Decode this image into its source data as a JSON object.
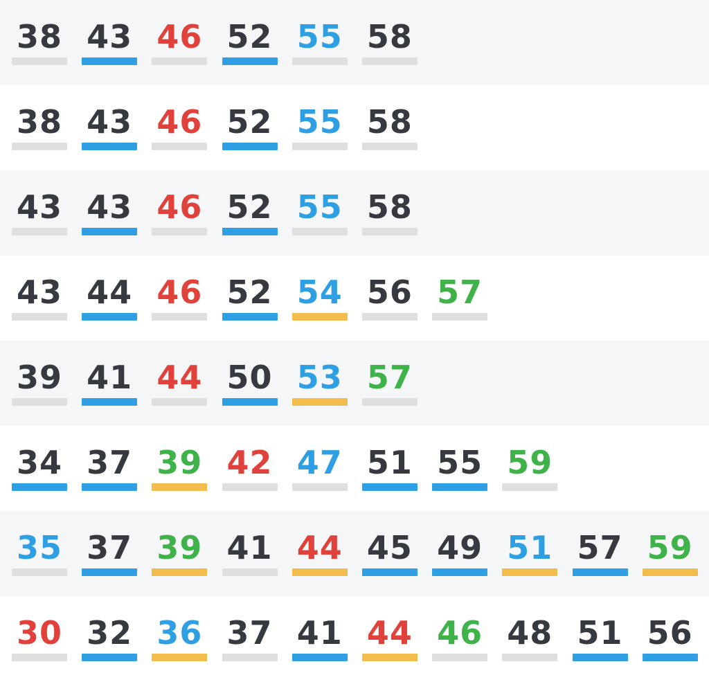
{
  "colors": {
    "text": {
      "dark": "#363940",
      "red": "#e0423b",
      "blue": "#2f9fe3",
      "green": "#3fb24a"
    },
    "bar": {
      "gray": "#dedfe1",
      "blue": "#2f9fe3",
      "yellow": "#f2bd4c"
    },
    "row_backgrounds": [
      "#f5f6f8",
      "#ffffff"
    ]
  },
  "rows": [
    {
      "cells": [
        {
          "value": "38",
          "color": "dark",
          "bar": "gray"
        },
        {
          "value": "43",
          "color": "dark",
          "bar": "blue"
        },
        {
          "value": "46",
          "color": "red",
          "bar": "gray"
        },
        {
          "value": "52",
          "color": "dark",
          "bar": "blue"
        },
        {
          "value": "55",
          "color": "blue",
          "bar": "gray"
        },
        {
          "value": "58",
          "color": "dark",
          "bar": "gray"
        }
      ]
    },
    {
      "cells": [
        {
          "value": "38",
          "color": "dark",
          "bar": "gray"
        },
        {
          "value": "43",
          "color": "dark",
          "bar": "blue"
        },
        {
          "value": "46",
          "color": "red",
          "bar": "gray"
        },
        {
          "value": "52",
          "color": "dark",
          "bar": "blue"
        },
        {
          "value": "55",
          "color": "blue",
          "bar": "gray"
        },
        {
          "value": "58",
          "color": "dark",
          "bar": "gray"
        }
      ]
    },
    {
      "cells": [
        {
          "value": "43",
          "color": "dark",
          "bar": "gray"
        },
        {
          "value": "43",
          "color": "dark",
          "bar": "blue"
        },
        {
          "value": "46",
          "color": "red",
          "bar": "gray"
        },
        {
          "value": "52",
          "color": "dark",
          "bar": "blue"
        },
        {
          "value": "55",
          "color": "blue",
          "bar": "gray"
        },
        {
          "value": "58",
          "color": "dark",
          "bar": "gray"
        }
      ]
    },
    {
      "cells": [
        {
          "value": "43",
          "color": "dark",
          "bar": "gray"
        },
        {
          "value": "44",
          "color": "dark",
          "bar": "blue"
        },
        {
          "value": "46",
          "color": "red",
          "bar": "gray"
        },
        {
          "value": "52",
          "color": "dark",
          "bar": "blue"
        },
        {
          "value": "54",
          "color": "blue",
          "bar": "yellow"
        },
        {
          "value": "56",
          "color": "dark",
          "bar": "gray"
        },
        {
          "value": "57",
          "color": "green",
          "bar": "gray"
        }
      ]
    },
    {
      "cells": [
        {
          "value": "39",
          "color": "dark",
          "bar": "gray"
        },
        {
          "value": "41",
          "color": "dark",
          "bar": "blue"
        },
        {
          "value": "44",
          "color": "red",
          "bar": "gray"
        },
        {
          "value": "50",
          "color": "dark",
          "bar": "blue"
        },
        {
          "value": "53",
          "color": "blue",
          "bar": "yellow"
        },
        {
          "value": "57",
          "color": "green",
          "bar": "gray"
        }
      ]
    },
    {
      "cells": [
        {
          "value": "34",
          "color": "dark",
          "bar": "blue"
        },
        {
          "value": "37",
          "color": "dark",
          "bar": "blue"
        },
        {
          "value": "39",
          "color": "green",
          "bar": "yellow"
        },
        {
          "value": "42",
          "color": "red",
          "bar": "gray"
        },
        {
          "value": "47",
          "color": "blue",
          "bar": "gray"
        },
        {
          "value": "51",
          "color": "dark",
          "bar": "blue"
        },
        {
          "value": "55",
          "color": "dark",
          "bar": "blue"
        },
        {
          "value": "59",
          "color": "green",
          "bar": "gray"
        }
      ]
    },
    {
      "cells": [
        {
          "value": "35",
          "color": "blue",
          "bar": "gray"
        },
        {
          "value": "37",
          "color": "dark",
          "bar": "blue"
        },
        {
          "value": "39",
          "color": "green",
          "bar": "yellow"
        },
        {
          "value": "41",
          "color": "dark",
          "bar": "gray"
        },
        {
          "value": "44",
          "color": "red",
          "bar": "yellow"
        },
        {
          "value": "45",
          "color": "dark",
          "bar": "blue"
        },
        {
          "value": "49",
          "color": "dark",
          "bar": "blue"
        },
        {
          "value": "51",
          "color": "blue",
          "bar": "yellow"
        },
        {
          "value": "57",
          "color": "dark",
          "bar": "blue"
        },
        {
          "value": "59",
          "color": "green",
          "bar": "yellow"
        }
      ]
    },
    {
      "cells": [
        {
          "value": "30",
          "color": "red",
          "bar": "gray"
        },
        {
          "value": "32",
          "color": "dark",
          "bar": "blue"
        },
        {
          "value": "36",
          "color": "blue",
          "bar": "yellow"
        },
        {
          "value": "37",
          "color": "dark",
          "bar": "gray"
        },
        {
          "value": "41",
          "color": "dark",
          "bar": "blue"
        },
        {
          "value": "44",
          "color": "red",
          "bar": "yellow"
        },
        {
          "value": "46",
          "color": "green",
          "bar": "gray"
        },
        {
          "value": "48",
          "color": "dark",
          "bar": "gray"
        },
        {
          "value": "51",
          "color": "dark",
          "bar": "blue"
        },
        {
          "value": "56",
          "color": "dark",
          "bar": "blue"
        }
      ]
    }
  ]
}
